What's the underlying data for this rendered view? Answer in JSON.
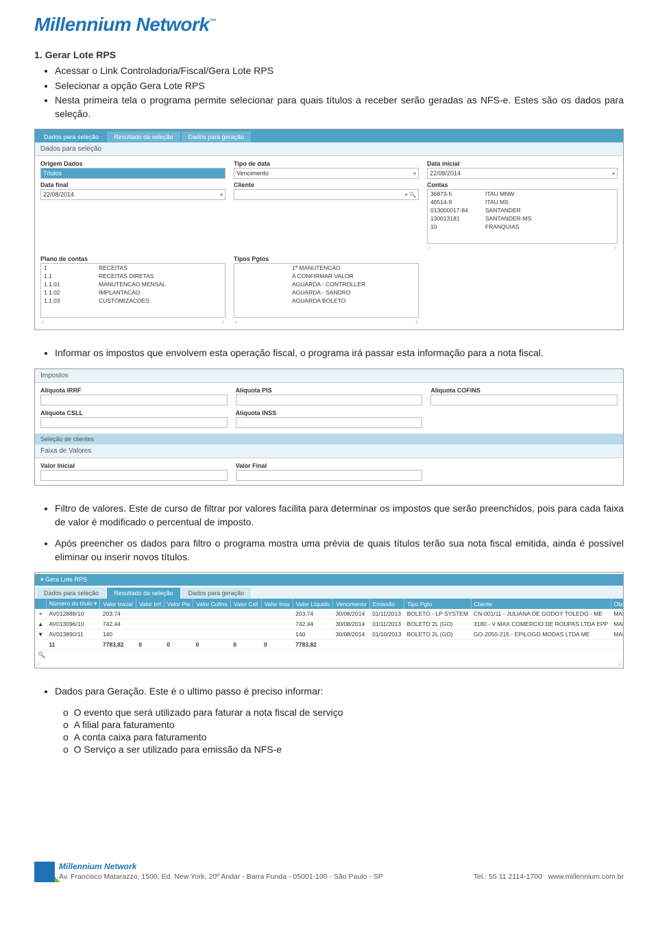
{
  "logo": {
    "text": "Millennium Network",
    "tm": "™"
  },
  "section1": {
    "title": "1. Gerar Lote RPS",
    "bullets": [
      "Acessar o Link Controladoria/Fiscal/Gera Lote RPS",
      "Selecionar a opção Gera Lote RPS",
      "Nesta primeira tela o programa permite selecionar para quais títulos a receber serão geradas as NFS-e. Estes são os dados para seleção."
    ]
  },
  "shot1": {
    "tabs": [
      "Dados para seleção",
      "Resultado da seleção",
      "Dados para geração"
    ],
    "panel_title": "Dados para seleção",
    "fields": {
      "origem_label": "Origem Dados",
      "origem_val": "Títulos",
      "tipo_label": "Tipo de data",
      "tipo_val": "Vencimento",
      "data_ini_label": "Data inicial",
      "data_ini_val": "22/08/2014",
      "data_fim_label": "Data final",
      "data_fim_val": "22/08/2014",
      "cliente_label": "Cliente",
      "cliente_val": "",
      "contas_label": "Contas"
    },
    "contas_rows": [
      [
        "36873-5",
        "ITAU MNW"
      ],
      [
        "46514-9",
        "ITAU MS"
      ],
      [
        "013000017-84",
        "SANTANDER"
      ],
      [
        "130013181",
        "SANTANDER-MS"
      ],
      [
        "10",
        "FRANQUIAS"
      ]
    ],
    "plano_label": "Plano de contas",
    "plano_rows": [
      [
        "1",
        "RECEITAS"
      ],
      [
        "1.1",
        "RECEITAS DIRETAS"
      ],
      [
        "1.1.01",
        "MANUTENCAO MENSAL"
      ],
      [
        "1.1.02",
        "IMPLANTACAO"
      ],
      [
        "1.1.03",
        "CUSTOMIZACOES"
      ]
    ],
    "tipos_label": "Tipos Pgtos",
    "tipos_rows": [
      "1ª MANUTENCAO",
      "A CONFIRMAR VALOR",
      "AGUARDA - CONTROLLER",
      "AGUARDA - SANDRO",
      "AGUARDA BOLETO"
    ]
  },
  "mid1": "Informar os impostos que envolvem esta operação fiscal, o programa irá passar esta informação para a nota fiscal.",
  "shot2": {
    "hdr": "Impostos",
    "irrf": "Alíquota IRRF",
    "pis": "Alíquota PIS",
    "cofins": "Alíquota COFINS",
    "csll": "Alíquota CSLL",
    "inss": "Alíquota INSS",
    "sel_cli": "Seleção de clientes",
    "faixa": "Faixa de Valores",
    "vini": "Valor Inicial",
    "vfim": "Valor Final"
  },
  "mid2a": "Filtro de valores. Este de curso de filtrar por valores facilita para determinar os impostos que serão preenchidos, pois para cada faixa de valor é modificado o percentual de imposto.",
  "mid2b": "Após preencher os dados para filtro o programa mostra uma prévia de quais títulos terão sua nota fiscal emitida, ainda é possível eliminar ou inserir novos títulos.",
  "shot3": {
    "crumb": "Gera Lote RPS",
    "tabs": [
      "Dados para seleção",
      "Resultado da seleção",
      "Dados para geração"
    ],
    "cols": [
      "",
      "Número do título",
      "Valor Inicial",
      "Valor Irrf",
      "Valor Pis",
      "Valor Cofins",
      "Valor Csll",
      "Valor Inss",
      "Valor Líquido",
      "Vencimento",
      "Emissão",
      "Tipo Pgto",
      "Cliente",
      "Observ..."
    ],
    "rows": [
      [
        "×",
        "AV012888/10",
        "203,74",
        "",
        "",
        "",
        "",
        "",
        "203,74",
        "30/08/2014",
        "01/11/2013",
        "BOLETO - LP SYSTEM",
        "CN-001/11 - JULIANA DE GODOY TOLEDO - ME",
        "MANUTEN"
      ],
      [
        "▲",
        "AV013096/10",
        "742,44",
        "",
        "",
        "",
        "",
        "",
        "742,44",
        "30/08/2014",
        "01/11/2013",
        "BOLETO 2L (GO)",
        "3180 - V MAX COMERCIO DE ROUPAS LTDA EPP",
        "MANUTEN"
      ],
      [
        "▼",
        "AV013890/11",
        "140",
        "",
        "",
        "",
        "",
        "",
        "140",
        "30/08/2014",
        "01/10/2013",
        "BOLETO 2L (GO)",
        "GO-2050-215 - EPILOGO MODAS LTDA ME",
        "MANUTEN"
      ]
    ],
    "sum": [
      "",
      "11",
      "7783,82",
      "0",
      "0",
      "0",
      "0",
      "0",
      "7783,82",
      "",
      "",
      "",
      "",
      ""
    ]
  },
  "mid3": "Dados para Geração. Este é o ultimo passo é preciso informar:",
  "sub3": [
    "O evento que será utilizado para faturar a nota fiscal de serviço",
    "A filial para faturamento",
    "A conta caixa para faturamento",
    "O Serviço a ser utilizado para emissão da NFS-e"
  ],
  "footer": {
    "brand": "Millennium Network",
    "addr": "Av. Francisco Matarazzo, 1500, Ed. New York, 20º Andar - Barra Funda - 05001-100 - São Paulo - SP",
    "tel_label": "Tel.:",
    "tel": "55 11 2114-1700",
    "site": "www.millennium.com.br"
  }
}
